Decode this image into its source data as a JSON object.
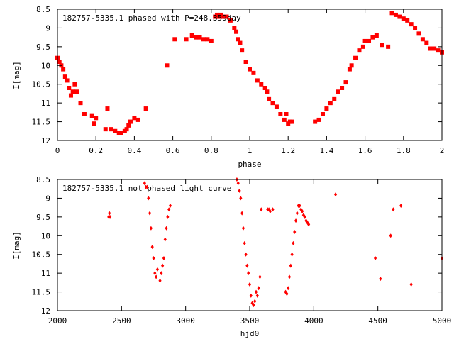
{
  "colors": {
    "points": "#ff0000",
    "axes": "#000000",
    "background": "#ffffff"
  },
  "chart_data": [
    {
      "type": "scatter",
      "title": "182757-5335.1 phased with P=248.359day",
      "xlabel": "phase",
      "ylabel": "I[mag]",
      "xlim": [
        0,
        2
      ],
      "ylim": [
        8.5,
        12
      ],
      "y_inverted": true,
      "grid": false,
      "x_ticks": [
        "0",
        "0.2",
        "0.4",
        "0.6",
        "0.8",
        "1",
        "1.2",
        "1.4",
        "1.6",
        "1.8",
        "2"
      ],
      "y_ticks": [
        "8.5",
        "9",
        "9.5",
        "10",
        "10.5",
        "11",
        "11.5",
        "12"
      ],
      "series": [
        {
          "marker": "filled-square",
          "color": "#ff0000",
          "x": [
            0.0,
            0.01,
            0.02,
            0.03,
            0.04,
            0.05,
            0.06,
            0.07,
            0.08,
            0.09,
            0.1,
            0.12,
            0.14,
            0.18,
            0.19,
            0.2,
            0.25,
            0.26,
            0.28,
            0.3,
            0.32,
            0.33,
            0.35,
            0.36,
            0.37,
            0.38,
            0.4,
            0.42,
            0.46,
            0.57,
            0.61,
            0.67,
            0.7,
            0.72,
            0.74,
            0.76,
            0.78,
            0.8,
            0.82,
            0.83,
            0.84,
            0.85,
            0.86,
            0.88,
            0.9,
            0.92,
            0.93,
            0.94,
            0.95,
            0.96,
            0.98,
            1.0,
            1.02,
            1.04,
            1.06,
            1.08,
            1.09,
            1.1,
            1.12,
            1.14,
            1.16,
            1.18,
            1.19,
            1.2,
            1.21,
            1.22,
            1.34,
            1.36,
            1.38,
            1.4,
            1.42,
            1.44,
            1.46,
            1.48,
            1.5,
            1.52,
            1.53,
            1.55,
            1.57,
            1.59,
            1.6,
            1.62,
            1.64,
            1.66,
            1.69,
            1.72,
            1.74,
            1.76,
            1.78,
            1.8,
            1.82,
            1.84,
            1.86,
            1.88,
            1.9,
            1.92,
            1.94,
            1.96,
            1.98,
            2.0
          ],
          "y": [
            9.8,
            9.9,
            10.0,
            10.1,
            10.3,
            10.4,
            10.6,
            10.8,
            10.7,
            10.5,
            10.7,
            11.0,
            11.3,
            11.35,
            11.55,
            11.4,
            11.7,
            11.15,
            11.7,
            11.75,
            11.8,
            11.8,
            11.75,
            11.7,
            11.6,
            11.5,
            11.4,
            11.45,
            11.15,
            10.0,
            9.3,
            9.3,
            9.2,
            9.25,
            9.25,
            9.3,
            9.3,
            9.35,
            8.7,
            8.65,
            8.7,
            8.65,
            8.7,
            8.7,
            8.8,
            9.0,
            9.1,
            9.3,
            9.4,
            9.6,
            9.9,
            10.1,
            10.2,
            10.4,
            10.5,
            10.6,
            10.7,
            10.9,
            11.0,
            11.1,
            11.3,
            11.45,
            11.3,
            11.55,
            11.5,
            11.5,
            11.5,
            11.45,
            11.3,
            11.15,
            11.0,
            10.9,
            10.7,
            10.6,
            10.45,
            10.1,
            10.0,
            9.8,
            9.6,
            9.5,
            9.35,
            9.35,
            9.25,
            9.2,
            9.45,
            9.5,
            8.6,
            8.65,
            8.7,
            8.75,
            8.8,
            8.9,
            9.0,
            9.15,
            9.3,
            9.4,
            9.55,
            9.55,
            9.6,
            9.65
          ]
        }
      ]
    },
    {
      "type": "scatter",
      "title": "182757-5335.1 not phased light curve",
      "xlabel": "hjd0",
      "ylabel": "I[mag]",
      "xlim": [
        2000,
        5000
      ],
      "ylim": [
        8.5,
        12
      ],
      "y_inverted": true,
      "grid": false,
      "x_ticks": [
        "2000",
        "2500",
        "3000",
        "3500",
        "4000",
        "4500",
        "5000"
      ],
      "y_ticks": [
        "8.5",
        "9",
        "9.5",
        "10",
        "10.5",
        "11",
        "11.5",
        "12"
      ],
      "series": [
        {
          "marker": "small-diamond",
          "color": "#ff0000",
          "x": [
            2400,
            2405,
            2410,
            2680,
            2690,
            2700,
            2710,
            2720,
            2730,
            2740,
            2750,
            2760,
            2770,
            2780,
            2800,
            2810,
            2820,
            2830,
            2840,
            2850,
            2860,
            2870,
            2880,
            3400,
            3410,
            3420,
            3430,
            3440,
            3450,
            3460,
            3470,
            3480,
            3490,
            3500,
            3510,
            3520,
            3530,
            3540,
            3550,
            3560,
            3570,
            3580,
            3590,
            3640,
            3650,
            3660,
            3680,
            3780,
            3790,
            3800,
            3810,
            3820,
            3830,
            3840,
            3850,
            3860,
            3870,
            3880,
            3890,
            3900,
            3910,
            3920,
            3930,
            3940,
            3950,
            3960,
            4170,
            4480,
            4520,
            4600,
            4620,
            4680,
            4760,
            5000
          ],
          "y": [
            9.5,
            9.4,
            9.5,
            8.6,
            8.7,
            8.7,
            9.0,
            9.4,
            9.8,
            10.3,
            10.6,
            11.0,
            11.1,
            10.9,
            11.2,
            11.0,
            10.8,
            10.6,
            10.1,
            9.8,
            9.5,
            9.3,
            9.2,
            8.5,
            8.6,
            8.8,
            9.0,
            9.4,
            9.8,
            10.2,
            10.5,
            10.8,
            11.0,
            11.3,
            11.6,
            11.8,
            11.85,
            11.75,
            11.5,
            11.6,
            11.4,
            11.1,
            9.3,
            9.3,
            9.3,
            9.35,
            9.3,
            11.5,
            11.55,
            11.4,
            11.1,
            10.8,
            10.5,
            10.2,
            9.9,
            9.6,
            9.4,
            9.2,
            9.2,
            9.3,
            9.35,
            9.45,
            9.5,
            9.6,
            9.65,
            9.7,
            8.9,
            10.6,
            11.15,
            10.0,
            9.3,
            9.2,
            11.3,
            10.6
          ]
        }
      ]
    }
  ]
}
